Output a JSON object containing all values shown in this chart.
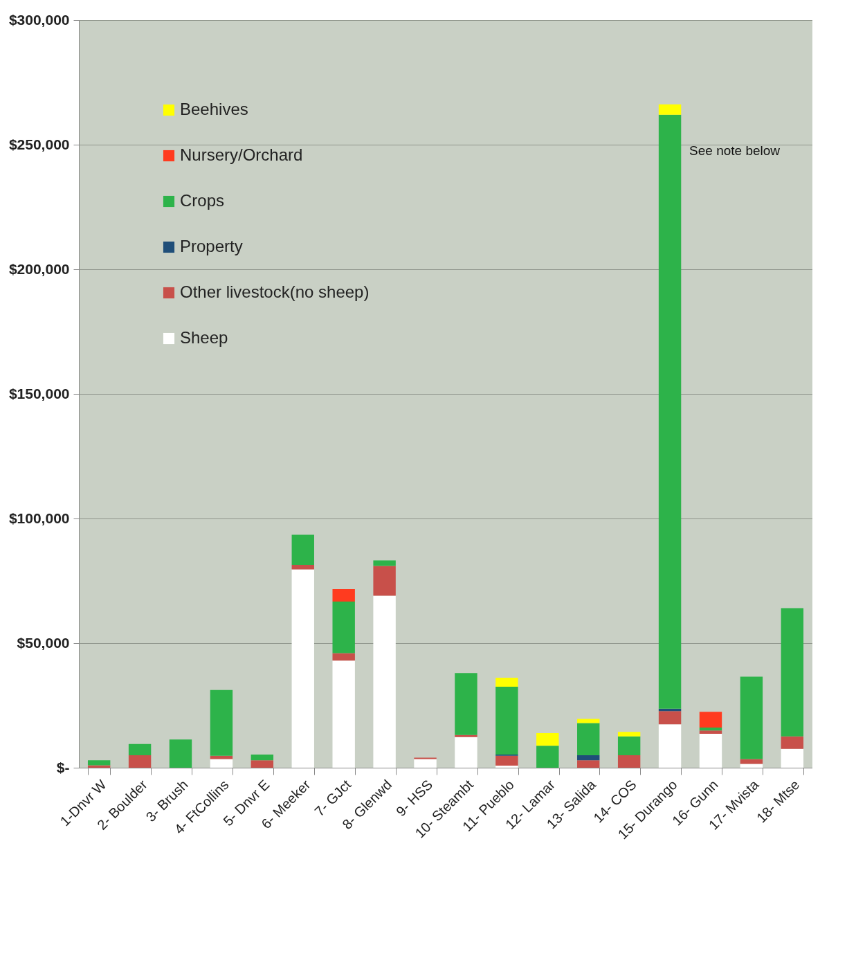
{
  "chart_data": {
    "type": "bar",
    "stacked": true,
    "categories": [
      "1-Dnvr W",
      "2- Boulder",
      "3- Brush",
      "4- FtCollins",
      "5- Dnvr E",
      "6- Meeker",
      "7- GJct",
      "8- Glenwd",
      "9- HSS",
      "10- Steambt",
      "11- Pueblo",
      "12- Lamar",
      "13- Salida",
      "14- COS",
      "15- Durango",
      "16- Gunn",
      "17- Mvista",
      "18- Mtse"
    ],
    "series": [
      {
        "name": "Sheep",
        "color": "#ffffff",
        "values": [
          0,
          0,
          0,
          3500,
          0,
          79600,
          43000,
          69000,
          3500,
          12300,
          800,
          0,
          0,
          0,
          17400,
          13600,
          1500,
          7600
        ]
      },
      {
        "name": "Other livestock(no sheep)",
        "color": "#c8504a",
        "values": [
          1000,
          5000,
          0,
          1300,
          3000,
          1800,
          3000,
          12000,
          500,
          800,
          4000,
          0,
          3000,
          5000,
          5300,
          1300,
          2000,
          5000
        ]
      },
      {
        "name": "Property",
        "color": "#1f4e79",
        "values": [
          0,
          0,
          0,
          0,
          0,
          0,
          0,
          0,
          0,
          0,
          500,
          0,
          2000,
          0,
          1000,
          0,
          0,
          0
        ]
      },
      {
        "name": "Crops",
        "color": "#2db34a",
        "values": [
          2000,
          4500,
          11300,
          26400,
          2300,
          12100,
          20700,
          2200,
          0,
          24900,
          27200,
          8800,
          12900,
          7600,
          238300,
          1200,
          33000,
          51400
        ]
      },
      {
        "name": "Nursery/Orchard",
        "color": "#ff3b1f",
        "values": [
          0,
          0,
          0,
          0,
          0,
          0,
          5000,
          0,
          0,
          0,
          0,
          0,
          0,
          0,
          0,
          6300,
          0,
          0
        ]
      },
      {
        "name": "Beehives",
        "color": "#ffff00",
        "values": [
          0,
          0,
          0,
          0,
          0,
          0,
          0,
          0,
          0,
          0,
          3600,
          5100,
          1700,
          1800,
          4200,
          0,
          0,
          0
        ]
      }
    ],
    "ylim": [
      0,
      300000
    ],
    "yticks": [
      {
        "value": 0,
        "label": "$-"
      },
      {
        "value": 50000,
        "label": "$50,000"
      },
      {
        "value": 100000,
        "label": "$100,000"
      },
      {
        "value": 150000,
        "label": "$150,000"
      },
      {
        "value": 200000,
        "label": "$200,000"
      },
      {
        "value": 250000,
        "label": "$250,000"
      },
      {
        "value": 300000,
        "label": "$300,000"
      }
    ],
    "grid": "y",
    "legend": "top left",
    "annotations": [
      {
        "text": "See note below",
        "x": "15- Durango",
        "y": 250000
      }
    ]
  }
}
